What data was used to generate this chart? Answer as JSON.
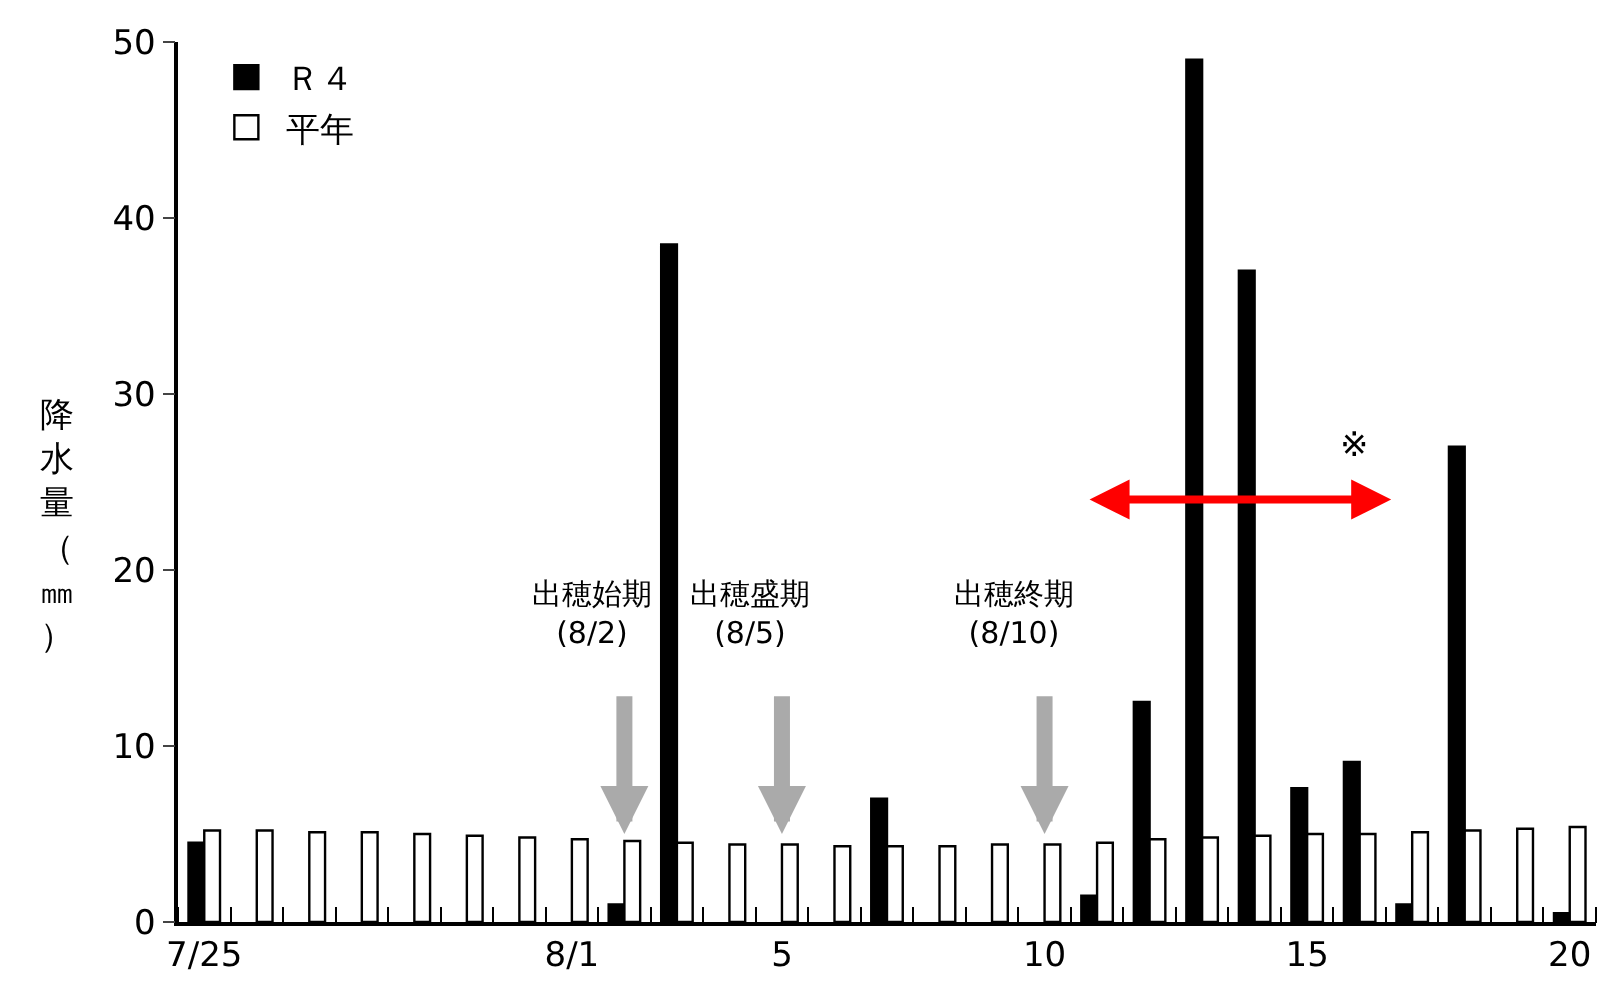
{
  "chart_data": {
    "type": "bar",
    "ylabel": "降水量（㎜）",
    "categories": [
      "7/25",
      null,
      null,
      null,
      null,
      null,
      null,
      "8/1",
      null,
      null,
      null,
      "5",
      null,
      null,
      null,
      null,
      "10",
      null,
      null,
      null,
      null,
      "15",
      null,
      null,
      null,
      null,
      "20"
    ],
    "series": [
      {
        "name": "Ｒ４",
        "color": "#000000",
        "values": [
          4.5,
          null,
          null,
          null,
          null,
          null,
          null,
          null,
          1.0,
          38.5,
          null,
          null,
          null,
          7.0,
          null,
          null,
          null,
          1.5,
          12.5,
          49,
          37,
          7.6,
          9.1,
          1.0,
          27,
          null,
          0.5
        ]
      },
      {
        "name": "平年",
        "color": "#ffffff",
        "values": [
          5.2,
          5.2,
          5.1,
          5.1,
          5.0,
          4.9,
          4.8,
          4.7,
          4.6,
          4.5,
          4.4,
          4.4,
          4.3,
          4.3,
          4.3,
          4.4,
          4.4,
          4.5,
          4.7,
          4.8,
          4.9,
          5.0,
          5.0,
          5.1,
          5.2,
          5.3,
          5.4
        ]
      }
    ],
    "ylim": [
      0,
      50
    ],
    "yticks": [
      0,
      10,
      20,
      30,
      40,
      50
    ],
    "legend": "top left",
    "annotations": [
      "出穂始期\n(8/2)",
      "出穂盛期\n(8/5)",
      "出穂終期\n(8/10)",
      "※"
    ]
  }
}
